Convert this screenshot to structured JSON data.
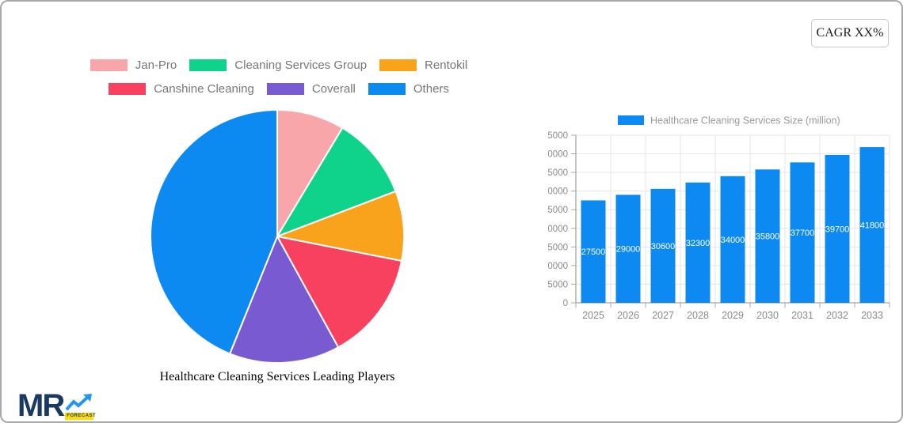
{
  "cagr_box": {
    "label": "CAGR XX%"
  },
  "logo": {
    "text": "MR",
    "tag": "FORECAST"
  },
  "colors": {
    "card_border": "#A8A8A8",
    "axis_text": "#8A8A8A",
    "legend_text": "#777777",
    "grid_line": "#E6E6E6",
    "axis_line": "#A8A8A8",
    "logo_navy": "#1B3A63",
    "logo_blue": "#2196F3",
    "logo_yellow": "#FFDD00"
  },
  "chart_data": [
    {
      "type": "pie",
      "title": "Healthcare Cleaning Services Leading Players",
      "labels": [
        "Jan-Pro",
        "Cleaning Services Group",
        "Rentokil",
        "Canshine Cleaning",
        "Coverall",
        "Others"
      ],
      "values": [
        8.6,
        10.6,
        8.9,
        13.9,
        14.1,
        43.9
      ],
      "unit": "percent share (estimated from arc angles)",
      "colors": [
        "#F8A6AA",
        "#10D38B",
        "#F9A21C",
        "#F8415F",
        "#7A5AD0",
        "#0D8AF2"
      ],
      "legend_position": "top",
      "start_angle": "12 o'clock",
      "direction": "clockwise",
      "slice_border_color": "#FFFFFF"
    },
    {
      "type": "bar",
      "legend": "Healthcare Cleaning Services Size (million)",
      "categories": [
        "2025",
        "2026",
        "2027",
        "2028",
        "2029",
        "2030",
        "2031",
        "2032",
        "2033"
      ],
      "values": [
        27500,
        29000,
        30600,
        32300,
        34000,
        35800,
        37700,
        39700,
        41800
      ],
      "title": "",
      "xlabel": "",
      "ylabel": "",
      "ylim": [
        0,
        45000
      ],
      "ytick_step": 5000,
      "bar_color": "#0D8AF2",
      "value_label_color": "#FFFFFF",
      "grid": true,
      "legend_position": "top"
    }
  ]
}
